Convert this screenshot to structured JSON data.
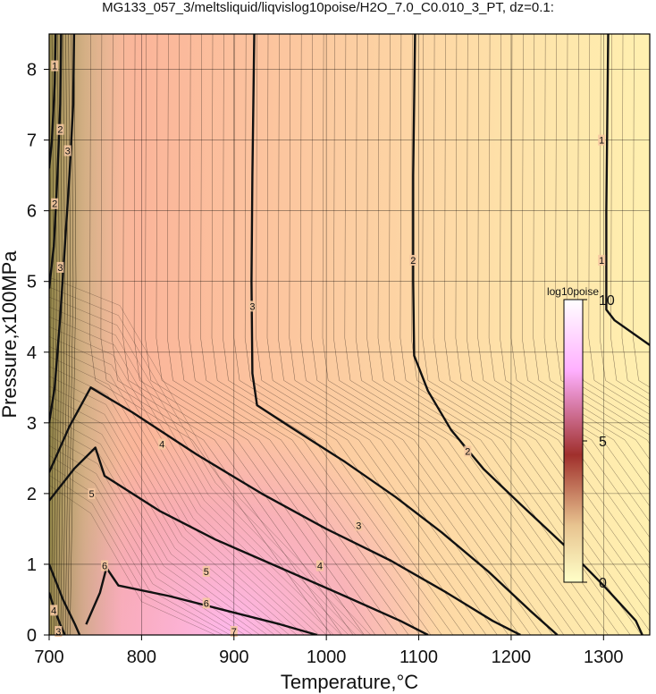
{
  "chart_data": {
    "type": "contour",
    "title": "MG133_057_3/meltsliquid/liqvislog10poise/H2O_7.0_C0.010_3_PT, dz=0.1:",
    "xlabel": "Temperature,°C",
    "ylabel": "Pressure,x100MPa",
    "xlim": [
      700,
      1350
    ],
    "ylim": [
      0,
      8.5
    ],
    "x_ticks": [
      "700",
      "800",
      "900",
      "1000",
      "1100",
      "1200",
      "1300"
    ],
    "y_ticks": [
      "0",
      "1",
      "2",
      "3",
      "4",
      "5",
      "6",
      "7",
      "8"
    ],
    "grid": true,
    "colorbar": {
      "title": "log10poise",
      "ticks": [
        "10",
        "5",
        "0"
      ],
      "range": [
        0,
        10
      ],
      "colors": [
        "#ffffc8",
        "#e8c490",
        "#a0302c",
        "#ffb0ff",
        "#ffffff"
      ]
    },
    "contours": [
      {
        "level": "1",
        "points": [
          [
            1305,
            8.5
          ],
          [
            1303,
            6.0
          ],
          [
            1303,
            4.6
          ],
          [
            1312,
            4.45
          ],
          [
            1350,
            4.1
          ]
        ]
      },
      {
        "level": "2",
        "points": [
          [
            1096,
            8.5
          ],
          [
            1094,
            6.5
          ],
          [
            1094,
            5.0
          ],
          [
            1095,
            3.95
          ],
          [
            1110,
            3.45
          ],
          [
            1135,
            2.9
          ],
          [
            1170,
            2.35
          ],
          [
            1210,
            1.85
          ],
          [
            1255,
            1.3
          ],
          [
            1300,
            0.7
          ],
          [
            1335,
            0.2
          ],
          [
            1342,
            0
          ]
        ]
      },
      {
        "level": "3",
        "points": [
          [
            922,
            8.5
          ],
          [
            920,
            6.5
          ],
          [
            919,
            5.0
          ],
          [
            920,
            3.7
          ],
          [
            925,
            3.25
          ],
          [
            960,
            2.95
          ],
          [
            1020,
            2.45
          ],
          [
            1075,
            1.95
          ],
          [
            1125,
            1.45
          ],
          [
            1175,
            0.9
          ],
          [
            1220,
            0.35
          ],
          [
            1250,
            0
          ]
        ]
      },
      {
        "level": "3",
        "points": [
          [
            727,
            8.5
          ],
          [
            726,
            7.5
          ],
          [
            722,
            6.5
          ],
          [
            717,
            5.5
          ],
          [
            712,
            4.5
          ],
          [
            706,
            3.5
          ],
          [
            700,
            3.0
          ]
        ]
      },
      {
        "level": "4",
        "points": [
          [
            700,
            2.3
          ],
          [
            722,
            2.95
          ],
          [
            745,
            3.5
          ],
          [
            790,
            3.15
          ],
          [
            860,
            2.55
          ],
          [
            930,
            2.0
          ],
          [
            1000,
            1.5
          ],
          [
            1070,
            1.05
          ],
          [
            1130,
            0.6
          ],
          [
            1180,
            0.2
          ],
          [
            1210,
            0
          ]
        ]
      },
      {
        "level": "5",
        "points": [
          [
            700,
            1.9
          ],
          [
            727,
            2.35
          ],
          [
            750,
            2.65
          ],
          [
            760,
            2.25
          ],
          [
            820,
            1.75
          ],
          [
            880,
            1.35
          ],
          [
            950,
            0.95
          ],
          [
            1020,
            0.55
          ],
          [
            1080,
            0.2
          ],
          [
            1110,
            0
          ]
        ]
      },
      {
        "level": "6",
        "points": [
          [
            740,
            0.15
          ],
          [
            755,
            0.6
          ],
          [
            762,
            0.95
          ],
          [
            775,
            0.7
          ],
          [
            830,
            0.55
          ],
          [
            890,
            0.35
          ],
          [
            950,
            0.15
          ],
          [
            990,
            0
          ]
        ]
      },
      {
        "level": "2",
        "points": [
          [
            713,
            8.5
          ],
          [
            712,
            7.5
          ],
          [
            709,
            6.5
          ],
          [
            705,
            5.5
          ],
          [
            700,
            4.9
          ]
        ]
      },
      {
        "level": "1",
        "points": [
          [
            707,
            8.5
          ],
          [
            706,
            7.8
          ],
          [
            703,
            7.0
          ],
          [
            700,
            6.6
          ]
        ]
      },
      {
        "level": "3",
        "points": [
          [
            700,
            0.6
          ],
          [
            706,
            0.35
          ],
          [
            712,
            0.15
          ],
          [
            717,
            0
          ]
        ]
      },
      {
        "level": "4",
        "points": [
          [
            700,
            1.0
          ],
          [
            715,
            0.5
          ],
          [
            728,
            0.15
          ],
          [
            733,
            0
          ]
        ]
      }
    ],
    "contour_labels": [
      {
        "text": "1",
        "x": 1298,
        "y": 7.0
      },
      {
        "text": "1",
        "x": 1298,
        "y": 5.3
      },
      {
        "text": "2",
        "x": 1094,
        "y": 5.3
      },
      {
        "text": "2",
        "x": 1153,
        "y": 2.6
      },
      {
        "text": "3",
        "x": 920,
        "y": 4.65
      },
      {
        "text": "3",
        "x": 1035,
        "y": 1.55
      },
      {
        "text": "3",
        "x": 720,
        "y": 6.85
      },
      {
        "text": "3",
        "x": 712,
        "y": 5.2
      },
      {
        "text": "2",
        "x": 712,
        "y": 7.15
      },
      {
        "text": "2",
        "x": 706,
        "y": 6.1
      },
      {
        "text": "1",
        "x": 706,
        "y": 8.05
      },
      {
        "text": "4",
        "x": 822,
        "y": 2.7
      },
      {
        "text": "4",
        "x": 993,
        "y": 0.98
      },
      {
        "text": "5",
        "x": 746,
        "y": 2.0
      },
      {
        "text": "5",
        "x": 870,
        "y": 0.9
      },
      {
        "text": "6",
        "x": 760,
        "y": 0.98
      },
      {
        "text": "6",
        "x": 870,
        "y": 0.45
      },
      {
        "text": "7",
        "x": 900,
        "y": 0.05
      },
      {
        "text": "4",
        "x": 705,
        "y": 0.35
      },
      {
        "text": "3",
        "x": 710,
        "y": 0.05
      }
    ]
  }
}
